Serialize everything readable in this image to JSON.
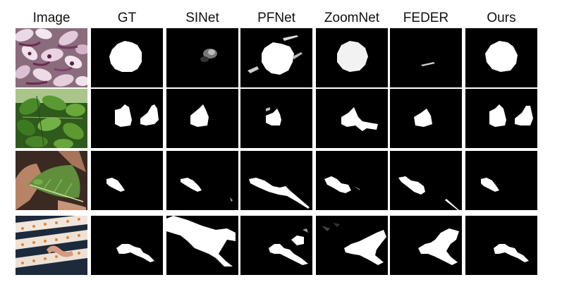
{
  "figure": {
    "columns": [
      "Image",
      "GT",
      "SINet",
      "PFNet",
      "ZoomNet",
      "FEDER",
      "Ours"
    ]
  },
  "rows": [
    {
      "subject": "orchids"
    },
    {
      "subject": "leaves"
    },
    {
      "subject": "leaf-insect"
    },
    {
      "subject": "coral-pipefish"
    }
  ],
  "colors": {
    "background": "#ffffff",
    "mask_bg": "#000000",
    "mask_fg": "#ffffff"
  }
}
